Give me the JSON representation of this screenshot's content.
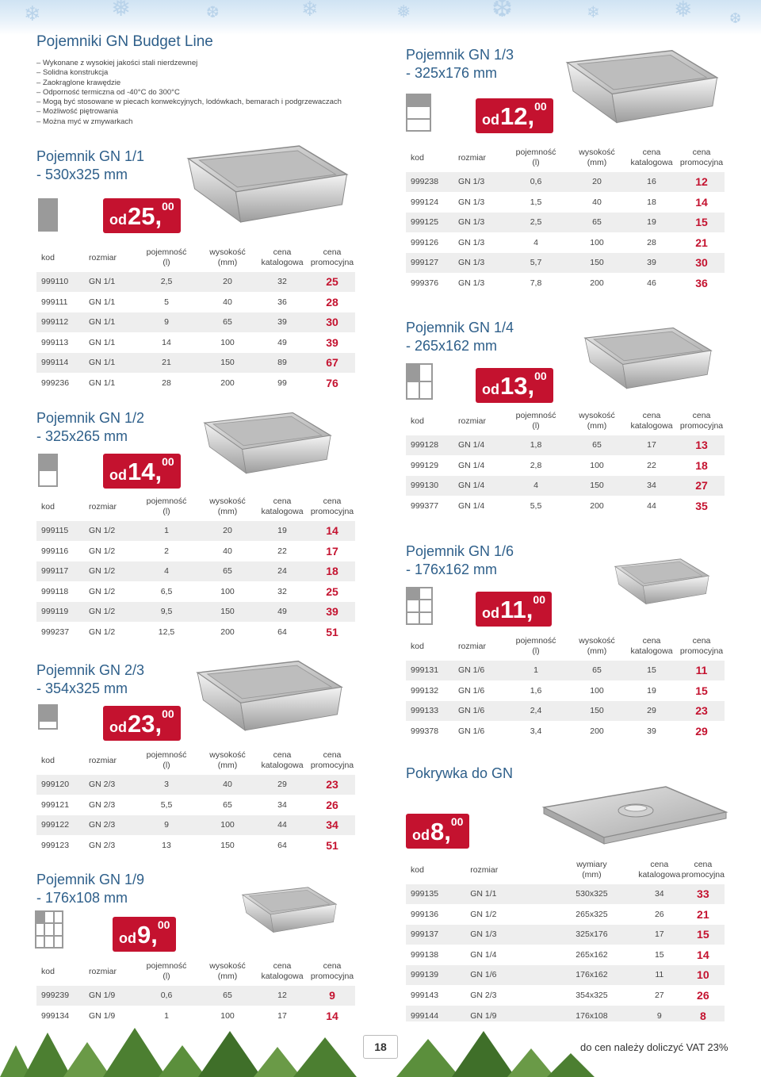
{
  "header": {
    "title": "Pojemniki GN Budget Line",
    "bullets": [
      "Wykonane z wysokiej jakości stali nierdzewnej",
      "Solidna konstrukcja",
      "Zaokrąglone krawędzie",
      "Odporność termiczna od -40°C do 300°C",
      "Mogą być stosowane w piecach konwekcyjnych, lodówkach, bemarach i podgrzewaczach",
      "Możliwość piętrowania",
      "Można myć w zmywarkach"
    ]
  },
  "columns": {
    "kod": "kod",
    "rozmiar": "rozmiar",
    "pojemnosc": "pojemność\n(l)",
    "wysokosc": "wysokość\n(mm)",
    "cena_kat": "cena\nkatalogowa",
    "cena_promo": "cena\npromocyjna",
    "wymiary": "wymiary\n(mm)"
  },
  "currency": {
    "od": "od",
    "comma": ",",
    "decimals": "00"
  },
  "sections": {
    "gn11": {
      "title": "Pojemnik GN 1/1\n- 530x325 mm",
      "price": "25",
      "rows": [
        [
          "999110",
          "GN 1/1",
          "2,5",
          "20",
          "32",
          "25"
        ],
        [
          "999111",
          "GN 1/1",
          "5",
          "40",
          "36",
          "28"
        ],
        [
          "999112",
          "GN 1/1",
          "9",
          "65",
          "39",
          "30"
        ],
        [
          "999113",
          "GN 1/1",
          "14",
          "100",
          "49",
          "39"
        ],
        [
          "999114",
          "GN 1/1",
          "21",
          "150",
          "89",
          "67"
        ],
        [
          "999236",
          "GN 1/1",
          "28",
          "200",
          "99",
          "76"
        ]
      ]
    },
    "gn12": {
      "title": "Pojemnik GN 1/2\n- 325x265 mm",
      "price": "14",
      "rows": [
        [
          "999115",
          "GN 1/2",
          "1",
          "20",
          "19",
          "14"
        ],
        [
          "999116",
          "GN 1/2",
          "2",
          "40",
          "22",
          "17"
        ],
        [
          "999117",
          "GN 1/2",
          "4",
          "65",
          "24",
          "18"
        ],
        [
          "999118",
          "GN 1/2",
          "6,5",
          "100",
          "32",
          "25"
        ],
        [
          "999119",
          "GN 1/2",
          "9,5",
          "150",
          "49",
          "39"
        ],
        [
          "999237",
          "GN 1/2",
          "12,5",
          "200",
          "64",
          "51"
        ]
      ]
    },
    "gn23": {
      "title": "Pojemnik GN 2/3\n- 354x325 mm",
      "price": "23",
      "rows": [
        [
          "999120",
          "GN 2/3",
          "3",
          "40",
          "29",
          "23"
        ],
        [
          "999121",
          "GN 2/3",
          "5,5",
          "65",
          "34",
          "26"
        ],
        [
          "999122",
          "GN 2/3",
          "9",
          "100",
          "44",
          "34"
        ],
        [
          "999123",
          "GN 2/3",
          "13",
          "150",
          "64",
          "51"
        ]
      ]
    },
    "gn19": {
      "title": "Pojemnik GN 1/9\n- 176x108 mm",
      "price": "9",
      "rows": [
        [
          "999239",
          "GN 1/9",
          "0,6",
          "65",
          "12",
          "9"
        ],
        [
          "999134",
          "GN 1/9",
          "1",
          "100",
          "17",
          "14"
        ]
      ]
    },
    "gn13": {
      "title": "Pojemnik GN 1/3\n- 325x176 mm",
      "price": "12",
      "rows": [
        [
          "999238",
          "GN 1/3",
          "0,6",
          "20",
          "16",
          "12"
        ],
        [
          "999124",
          "GN 1/3",
          "1,5",
          "40",
          "18",
          "14"
        ],
        [
          "999125",
          "GN 1/3",
          "2,5",
          "65",
          "19",
          "15"
        ],
        [
          "999126",
          "GN 1/3",
          "4",
          "100",
          "28",
          "21"
        ],
        [
          "999127",
          "GN 1/3",
          "5,7",
          "150",
          "39",
          "30"
        ],
        [
          "999376",
          "GN 1/3",
          "7,8",
          "200",
          "46",
          "36"
        ]
      ]
    },
    "gn14": {
      "title": "Pojemnik GN 1/4\n- 265x162 mm",
      "price": "13",
      "rows": [
        [
          "999128",
          "GN 1/4",
          "1,8",
          "65",
          "17",
          "13"
        ],
        [
          "999129",
          "GN 1/4",
          "2,8",
          "100",
          "22",
          "18"
        ],
        [
          "999130",
          "GN 1/4",
          "4",
          "150",
          "34",
          "27"
        ],
        [
          "999377",
          "GN 1/4",
          "5,5",
          "200",
          "44",
          "35"
        ]
      ]
    },
    "gn16": {
      "title": "Pojemnik GN 1/6\n- 176x162 mm",
      "price": "11",
      "rows": [
        [
          "999131",
          "GN 1/6",
          "1",
          "65",
          "15",
          "11"
        ],
        [
          "999132",
          "GN 1/6",
          "1,6",
          "100",
          "19",
          "15"
        ],
        [
          "999133",
          "GN 1/6",
          "2,4",
          "150",
          "29",
          "23"
        ],
        [
          "999378",
          "GN 1/6",
          "3,4",
          "200",
          "39",
          "29"
        ]
      ]
    },
    "lid": {
      "title": "Pokrywka do GN",
      "price": "8",
      "rows": [
        [
          "999135",
          "GN 1/1",
          "530x325",
          "34",
          "33"
        ],
        [
          "999136",
          "GN 1/2",
          "265x325",
          "26",
          "21"
        ],
        [
          "999137",
          "GN 1/3",
          "325x176",
          "17",
          "15"
        ],
        [
          "999138",
          "GN 1/4",
          "265x162",
          "15",
          "14"
        ],
        [
          "999139",
          "GN 1/6",
          "176x162",
          "11",
          "10"
        ],
        [
          "999143",
          "GN 2/3",
          "354x325",
          "27",
          "26"
        ],
        [
          "999144",
          "GN 1/9",
          "176x108",
          "9",
          "8"
        ]
      ]
    }
  },
  "footer": {
    "page_number": "18",
    "note": "do cen należy doliczyć VAT 23%"
  },
  "colors": {
    "accent": "#c4122f",
    "title_blue": "#2e5f8a",
    "row_gray": "#eeeeee"
  }
}
